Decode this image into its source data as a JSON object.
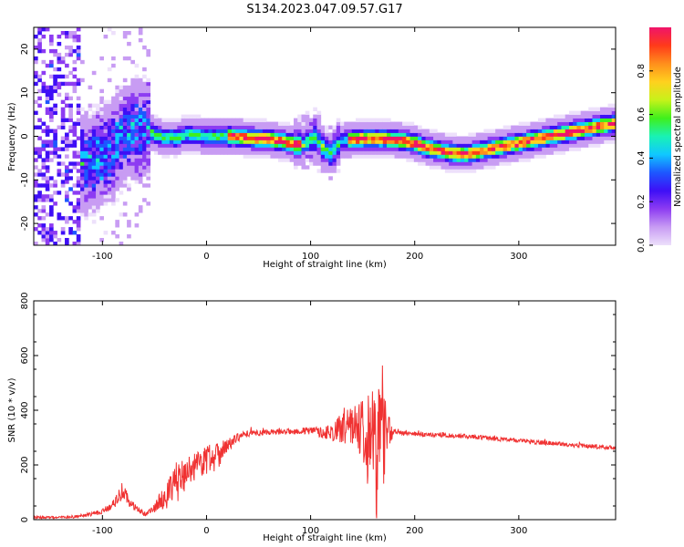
{
  "title": "S134.2023.047.09.57.G17",
  "colors": {
    "line": "#f03232",
    "frame": "#000000",
    "colormap": [
      "#ede0fb",
      "#c89cf3",
      "#8d3cf2",
      "#3e0ff6",
      "#1d57ff",
      "#10c8ff",
      "#19f2b4",
      "#3ff01c",
      "#c7f21a",
      "#ffd11e",
      "#ff8f1c",
      "#ff3a1a",
      "#f0146a"
    ]
  },
  "chart_data": [
    {
      "type": "heatmap",
      "description_label": "spectrogram",
      "xlabel": "Height of straight line (km)",
      "ylabel": "Frequency (Hz)",
      "xlim": [
        -166,
        393
      ],
      "ylim": [
        -25,
        25
      ],
      "xticks": [
        -100,
        0,
        100,
        200,
        300
      ],
      "yticks": [
        -20,
        -10,
        0,
        10,
        20
      ],
      "colorbar": {
        "label": "Normalized spectral amplitude",
        "range": [
          0,
          1
        ],
        "ticks": [
          0.0,
          0.2,
          0.4,
          0.6,
          0.8
        ]
      },
      "ridge": {
        "x": [
          -110,
          -100,
          -90,
          -80,
          -70,
          -60,
          -55,
          -50,
          -45,
          -40,
          -35,
          -30,
          -25,
          -20,
          -10,
          0,
          10,
          20,
          30,
          40,
          50,
          60,
          70,
          80,
          90,
          100,
          105,
          110,
          115,
          120,
          125,
          130,
          140,
          150,
          160,
          170,
          180,
          190,
          200,
          210,
          220,
          230,
          240,
          250,
          260,
          270,
          280,
          290,
          300,
          310,
          320,
          330,
          340,
          350,
          360,
          370,
          380,
          393
        ],
        "y": [
          -6,
          -4,
          -3,
          0,
          1.5,
          1.5,
          1,
          0.5,
          0,
          -0.5,
          0,
          -0.5,
          0,
          0.5,
          0.3,
          0,
          0,
          0,
          0,
          -0.3,
          -0.5,
          -0.7,
          -1,
          -1.5,
          -2,
          -1,
          0,
          -2,
          -3,
          -4,
          -2,
          -1,
          -0.7,
          -0.5,
          -0.5,
          -0.5,
          -0.7,
          -1,
          -1.5,
          -2.5,
          -3,
          -3.5,
          -4,
          -4,
          -3.5,
          -3,
          -2.5,
          -2,
          -1.5,
          -1,
          -0.5,
          0,
          0.5,
          1,
          1.5,
          2,
          2.5,
          3
        ]
      }
    },
    {
      "type": "line",
      "xlabel": "Height of straight line (km)",
      "ylabel": "SNR (10 * v/v)",
      "xlim": [
        -166,
        393
      ],
      "ylim": [
        0,
        800
      ],
      "xticks": [
        -100,
        0,
        100,
        200,
        300
      ],
      "yticks": [
        0,
        200,
        400,
        600,
        800
      ],
      "envelope": {
        "x": [
          -166,
          -140,
          -120,
          -100,
          -90,
          -85,
          -80,
          -75,
          -70,
          -60,
          -50,
          -45,
          -40,
          -35,
          -30,
          -20,
          -10,
          0,
          10,
          20,
          30,
          40,
          60,
          80,
          100,
          110,
          120,
          130,
          140,
          150,
          155,
          160,
          165,
          170,
          175,
          180,
          185,
          190,
          200,
          220,
          250,
          280,
          300,
          330,
          360,
          393
        ],
        "mean": [
          8,
          8,
          12,
          30,
          55,
          80,
          110,
          70,
          50,
          20,
          40,
          70,
          80,
          100,
          130,
          170,
          200,
          220,
          240,
          270,
          300,
          315,
          320,
          322,
          325,
          320,
          320,
          330,
          340,
          350,
          320,
          250,
          260,
          300,
          330,
          320,
          315,
          315,
          312,
          310,
          305,
          295,
          288,
          280,
          270,
          262
        ],
        "spread": [
          5,
          5,
          6,
          10,
          15,
          25,
          35,
          20,
          15,
          8,
          15,
          30,
          40,
          60,
          80,
          60,
          50,
          60,
          60,
          25,
          15,
          12,
          10,
          10,
          15,
          20,
          30,
          60,
          80,
          120,
          200,
          260,
          250,
          200,
          60,
          15,
          10,
          8,
          8,
          8,
          8,
          8,
          8,
          8,
          8,
          8
        ]
      }
    }
  ]
}
